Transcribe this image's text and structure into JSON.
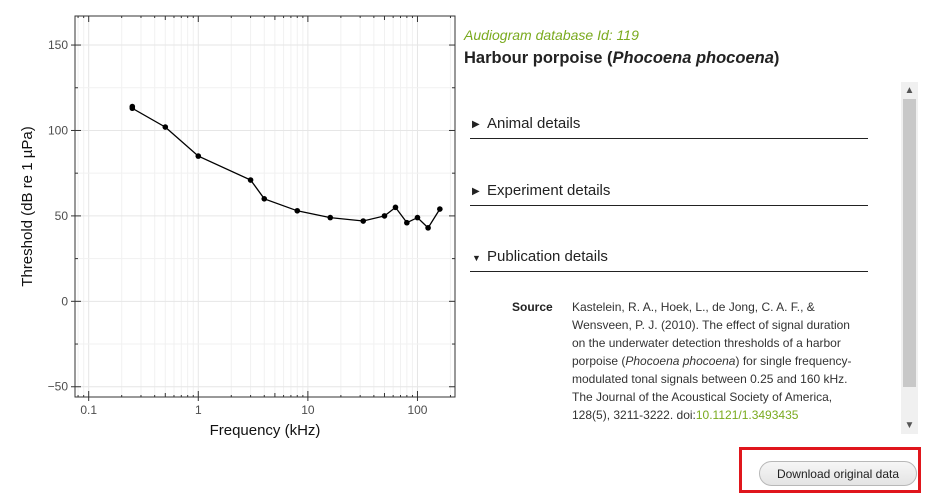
{
  "header": {
    "db_id_label": "Audiogram database Id: 119",
    "species_common": "Harbour porpoise (",
    "species_latin": "Phocoena phocoena",
    "species_close": ")"
  },
  "sections": [
    {
      "label": "Animal details",
      "expanded": false,
      "icon": "triangle-right-icon",
      "glyph": "▶"
    },
    {
      "label": "Experiment details",
      "expanded": false,
      "icon": "triangle-right-icon",
      "glyph": "▶"
    },
    {
      "label": "Publication details",
      "expanded": true,
      "icon": "triangle-down-icon",
      "glyph": "▼"
    }
  ],
  "publication": {
    "source_label": "Source",
    "source_text_1": "Kastelein, R. A., Hoek, L., de Jong, C. A. F., & Wensveen, P. J. (2010). The effect of signal duration on the underwater detection thresholds of a harbor porpoise (",
    "source_latin": "Phocoena phocoena",
    "source_text_2": ") for single frequency-modulated tonal signals between 0.25 and 160 kHz. The Journal of the Acoustical Society of America, 128(5), 3211-3222. doi:",
    "doi": "10.1121/1.3493435"
  },
  "download_button": {
    "label": "Download original data"
  },
  "scrollbar": {
    "up_glyph": "▲",
    "down_glyph": "▼"
  },
  "colors": {
    "accent": "#7aaa1e",
    "highlight_border": "#e0161c",
    "series": "#000000"
  },
  "chart_data": {
    "type": "line",
    "xlabel": "Frequency (kHz)",
    "ylabel": "Threshold (dB re 1 µPa)",
    "xscale": "log",
    "xlim": [
      0.075,
      220
    ],
    "ylim": [
      -56,
      167
    ],
    "xticks": [
      0.1,
      1,
      10,
      100
    ],
    "xtick_labels": [
      "0.1",
      "1",
      "10",
      "100"
    ],
    "yticks": [
      -50,
      0,
      50,
      100,
      150
    ],
    "ytick_labels": [
      "−50",
      "0",
      "50",
      "100",
      "150"
    ],
    "grid": true,
    "series": [
      {
        "x": [
          0.25,
          0.25,
          0.5,
          1,
          3,
          4,
          8,
          16,
          32,
          50,
          63,
          80,
          100,
          125,
          160
        ],
        "y": [
          114,
          113,
          102,
          85,
          71,
          60,
          53,
          49,
          47,
          50,
          55,
          46,
          49,
          43,
          54
        ]
      }
    ]
  }
}
